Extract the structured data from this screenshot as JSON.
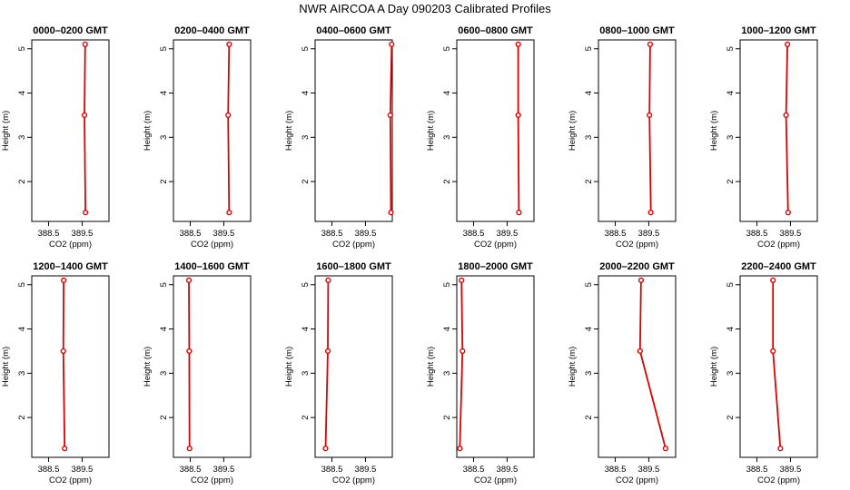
{
  "title": "NWR AIRCOA A  Day 090203  Calibrated Profiles",
  "style": {
    "line_color": "#dd0000",
    "marker_color": "#dd0000",
    "axis_color": "#000000"
  },
  "chart_data": [
    {
      "type": "line",
      "title": "0000–0200 GMT",
      "xlabel": "CO2 (ppm)",
      "ylabel": "Height (m)",
      "xlim": [
        388.0,
        390.3
      ],
      "ylim": [
        1.1,
        5.2
      ],
      "xticks": [
        388.5,
        389.5
      ],
      "xtick_labels": [
        "388.5",
        "389.5"
      ],
      "yticks": [
        2,
        3,
        4,
        5
      ],
      "ytick_labels": [
        "2",
        "3",
        "4",
        "5"
      ],
      "series": [
        {
          "x": [
            389.6,
            389.57,
            389.59
          ],
          "y": [
            1.3,
            3.5,
            5.1
          ]
        }
      ]
    },
    {
      "type": "line",
      "title": "0200–0400 GMT",
      "xlabel": "CO2 (ppm)",
      "ylabel": "Height (m)",
      "xlim": [
        388.0,
        390.3
      ],
      "ylim": [
        1.1,
        5.2
      ],
      "xticks": [
        388.5,
        389.5
      ],
      "xtick_labels": [
        "388.5",
        "389.5"
      ],
      "yticks": [
        2,
        3,
        4,
        5
      ],
      "ytick_labels": [
        "2",
        "3",
        "4",
        "5"
      ],
      "series": [
        {
          "x": [
            389.66,
            389.63,
            389.66
          ],
          "y": [
            1.3,
            3.5,
            5.1
          ]
        }
      ]
    },
    {
      "type": "line",
      "title": "0400–0600 GMT",
      "xlabel": "CO2 (ppm)",
      "ylabel": "Height (m)",
      "xlim": [
        388.0,
        390.3
      ],
      "ylim": [
        1.1,
        5.2
      ],
      "xticks": [
        388.5,
        389.5
      ],
      "xtick_labels": [
        "388.5",
        "389.5"
      ],
      "yticks": [
        2,
        3,
        4,
        5
      ],
      "ytick_labels": [
        "2",
        "3",
        "4",
        "5"
      ],
      "series": [
        {
          "x": [
            390.26,
            390.24,
            390.28
          ],
          "y": [
            1.3,
            3.5,
            5.1
          ]
        }
      ]
    },
    {
      "type": "line",
      "title": "0600–0800 GMT",
      "xlabel": "CO2 (ppm)",
      "ylabel": "Height (m)",
      "xlim": [
        388.0,
        390.3
      ],
      "ylim": [
        1.1,
        5.2
      ],
      "xticks": [
        388.5,
        389.5
      ],
      "xtick_labels": [
        "388.5",
        "389.5"
      ],
      "yticks": [
        2,
        3,
        4,
        5
      ],
      "ytick_labels": [
        "2",
        "3",
        "4",
        "5"
      ],
      "series": [
        {
          "x": [
            389.85,
            389.83,
            389.83
          ],
          "y": [
            1.3,
            3.5,
            5.1
          ]
        }
      ]
    },
    {
      "type": "line",
      "title": "0800–1000 GMT",
      "xlabel": "CO2 (ppm)",
      "ylabel": "Height (m)",
      "xlim": [
        388.0,
        390.3
      ],
      "ylim": [
        1.1,
        5.2
      ],
      "xticks": [
        388.5,
        389.5
      ],
      "xtick_labels": [
        "388.5",
        "389.5"
      ],
      "yticks": [
        2,
        3,
        4,
        5
      ],
      "ytick_labels": [
        "2",
        "3",
        "4",
        "5"
      ],
      "series": [
        {
          "x": [
            389.56,
            389.52,
            389.54
          ],
          "y": [
            1.3,
            3.5,
            5.1
          ]
        }
      ]
    },
    {
      "type": "line",
      "title": "1000–1200 GMT",
      "xlabel": "CO2 (ppm)",
      "ylabel": "Height (m)",
      "xlim": [
        388.0,
        390.3
      ],
      "ylim": [
        1.1,
        5.2
      ],
      "xticks": [
        388.5,
        389.5
      ],
      "xtick_labels": [
        "388.5",
        "389.5"
      ],
      "yticks": [
        2,
        3,
        4,
        5
      ],
      "ytick_labels": [
        "2",
        "3",
        "4",
        "5"
      ],
      "series": [
        {
          "x": [
            389.43,
            389.37,
            389.41
          ],
          "y": [
            1.3,
            3.5,
            5.1
          ]
        }
      ]
    },
    {
      "type": "line",
      "title": "1200–1400 GMT",
      "xlabel": "CO2 (ppm)",
      "ylabel": "Height (m)",
      "xlim": [
        388.0,
        390.3
      ],
      "ylim": [
        1.1,
        5.2
      ],
      "xticks": [
        388.5,
        389.5
      ],
      "xtick_labels": [
        "388.5",
        "389.5"
      ],
      "yticks": [
        2,
        3,
        4,
        5
      ],
      "ytick_labels": [
        "2",
        "3",
        "4",
        "5"
      ],
      "series": [
        {
          "x": [
            388.98,
            388.94,
            388.95
          ],
          "y": [
            1.3,
            3.5,
            5.1
          ]
        }
      ]
    },
    {
      "type": "line",
      "title": "1400–1600 GMT",
      "xlabel": "CO2 (ppm)",
      "ylabel": "Height (m)",
      "xlim": [
        388.0,
        390.3
      ],
      "ylim": [
        1.1,
        5.2
      ],
      "xticks": [
        388.5,
        389.5
      ],
      "xtick_labels": [
        "388.5",
        "389.5"
      ],
      "yticks": [
        2,
        3,
        4,
        5
      ],
      "ytick_labels": [
        "2",
        "3",
        "4",
        "5"
      ],
      "series": [
        {
          "x": [
            388.48,
            388.47,
            388.46
          ],
          "y": [
            1.3,
            3.5,
            5.1
          ]
        }
      ]
    },
    {
      "type": "line",
      "title": "1600–1800 GMT",
      "xlabel": "CO2 (ppm)",
      "ylabel": "Height (m)",
      "xlim": [
        388.0,
        390.3
      ],
      "ylim": [
        1.1,
        5.2
      ],
      "xticks": [
        388.5,
        389.5
      ],
      "xtick_labels": [
        "388.5",
        "389.5"
      ],
      "yticks": [
        2,
        3,
        4,
        5
      ],
      "ytick_labels": [
        "2",
        "3",
        "4",
        "5"
      ],
      "series": [
        {
          "x": [
            388.31,
            388.38,
            388.39
          ],
          "y": [
            1.3,
            3.5,
            5.1
          ]
        }
      ]
    },
    {
      "type": "line",
      "title": "1800–2000 GMT",
      "xlabel": "CO2 (ppm)",
      "ylabel": "Height (m)",
      "xlim": [
        388.0,
        390.3
      ],
      "ylim": [
        1.1,
        5.2
      ],
      "xticks": [
        388.5,
        389.5
      ],
      "xtick_labels": [
        "388.5",
        "389.5"
      ],
      "yticks": [
        2,
        3,
        4,
        5
      ],
      "ytick_labels": [
        "2",
        "3",
        "4",
        "5"
      ],
      "series": [
        {
          "x": [
            388.09,
            388.17,
            388.14
          ],
          "y": [
            1.3,
            3.5,
            5.1
          ]
        }
      ]
    },
    {
      "type": "line",
      "title": "2000–2200 GMT",
      "xlabel": "CO2 (ppm)",
      "ylabel": "Height (m)",
      "xlim": [
        388.0,
        390.3
      ],
      "ylim": [
        1.1,
        5.2
      ],
      "xticks": [
        388.5,
        389.5
      ],
      "xtick_labels": [
        "388.5",
        "389.5"
      ],
      "yticks": [
        2,
        3,
        4,
        5
      ],
      "ytick_labels": [
        "2",
        "3",
        "4",
        "5"
      ],
      "series": [
        {
          "x": [
            390.0,
            389.24,
            389.27
          ],
          "y": [
            1.3,
            3.5,
            5.1
          ]
        }
      ]
    },
    {
      "type": "line",
      "title": "2200–2400 GMT",
      "xlabel": "CO2 (ppm)",
      "ylabel": "Height (m)",
      "xlim": [
        388.0,
        390.3
      ],
      "ylim": [
        1.1,
        5.2
      ],
      "xticks": [
        388.5,
        389.5
      ],
      "xtick_labels": [
        "388.5",
        "389.5"
      ],
      "yticks": [
        2,
        3,
        4,
        5
      ],
      "ytick_labels": [
        "2",
        "3",
        "4",
        "5"
      ],
      "series": [
        {
          "x": [
            389.2,
            388.98,
            388.98
          ],
          "y": [
            1.3,
            3.5,
            5.1
          ]
        }
      ]
    }
  ]
}
